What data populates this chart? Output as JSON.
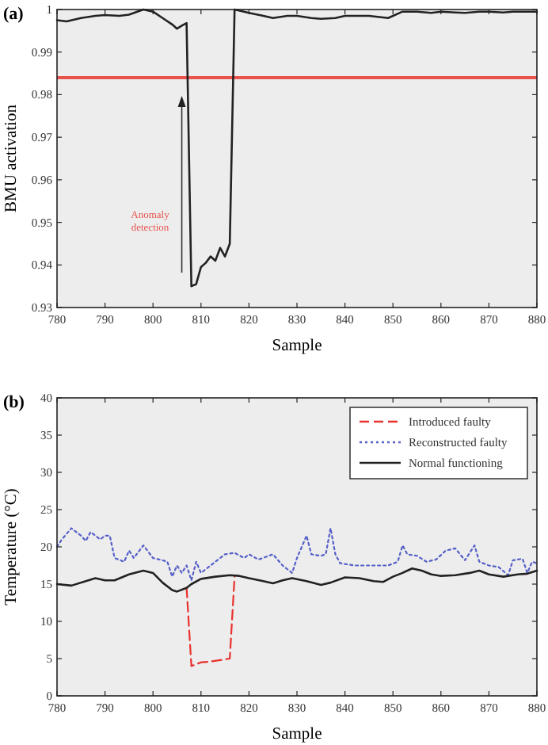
{
  "chart_data": [
    {
      "type": "line",
      "title": "(a)",
      "xlabel": "Sample",
      "ylabel": "BMU activation",
      "xlim": [
        780,
        880
      ],
      "xticks": [
        780,
        790,
        800,
        810,
        820,
        830,
        840,
        850,
        860,
        870,
        880
      ],
      "ylim": [
        0.93,
        1
      ],
      "yticks": [
        0.93,
        0.94,
        0.95,
        0.96,
        0.97,
        0.98,
        0.99,
        1
      ],
      "grid": false,
      "legend": false,
      "x": [
        780,
        782,
        785,
        788,
        790,
        793,
        795,
        798,
        800,
        802,
        804,
        805,
        806,
        807,
        808,
        809,
        810,
        811,
        812,
        813,
        814,
        815,
        816,
        817,
        820,
        823,
        825,
        828,
        830,
        833,
        835,
        838,
        840,
        843,
        845,
        849,
        852,
        855,
        858,
        860,
        863,
        865,
        868,
        870,
        873,
        875,
        878,
        880
      ],
      "series": [
        {
          "color": "#222222",
          "line_style": "solid",
          "values": [
            0.9975,
            0.9972,
            0.998,
            0.9985,
            0.9987,
            0.9985,
            0.9988,
            1.0,
            0.9995,
            0.998,
            0.9965,
            0.9955,
            0.9962,
            0.9968,
            0.935,
            0.9355,
            0.9395,
            0.9405,
            0.942,
            0.941,
            0.944,
            0.942,
            0.945,
            1.0,
            0.9992,
            0.9985,
            0.998,
            0.9985,
            0.9985,
            0.998,
            0.9978,
            0.998,
            0.9985,
            0.9985,
            0.9985,
            0.998,
            0.9995,
            0.9995,
            0.9992,
            0.9995,
            0.9993,
            0.9992,
            0.9995,
            0.9995,
            0.9993,
            0.9995,
            0.9995,
            0.9995
          ]
        }
      ],
      "ref_lines": [
        {
          "axis": "y",
          "value": 0.984,
          "color": "#e8534e"
        }
      ],
      "annotations": [
        "Anomaly detection"
      ]
    },
    {
      "type": "line",
      "title": "(b)",
      "xlabel": "Sample",
      "ylabel": "Temperature (°C)",
      "xlim": [
        780,
        880
      ],
      "xticks": [
        780,
        790,
        800,
        810,
        820,
        830,
        840,
        850,
        860,
        870,
        880
      ],
      "ylim": [
        0,
        40
      ],
      "yticks": [
        0,
        5,
        10,
        15,
        20,
        25,
        30,
        35,
        40
      ],
      "grid": false,
      "legend": "top right",
      "series": [
        {
          "name": "Introduced faulty",
          "color": "#e8322e",
          "line_style": "dashed",
          "x": [
            807,
            808,
            810,
            812,
            814,
            816,
            817
          ],
          "values": [
            14.5,
            4,
            4.5,
            4.6,
            4.8,
            5,
            16
          ]
        },
        {
          "name": "Reconstructed faulty",
          "color": "#5560c8",
          "line_style": "dotted",
          "x": [
            780,
            781,
            783,
            785,
            786,
            787,
            789,
            790,
            791,
            792,
            794,
            795,
            796,
            798,
            800,
            802,
            803,
            804,
            805,
            806,
            807,
            808,
            809,
            810,
            812,
            815,
            817,
            819,
            820,
            822,
            825,
            827,
            829,
            830,
            832,
            833,
            835,
            836,
            837,
            838,
            839,
            842,
            846,
            849,
            851,
            852,
            853,
            855,
            857,
            859,
            861,
            863,
            865,
            867,
            868,
            870,
            872,
            874,
            875,
            877,
            878,
            879,
            880
          ],
          "values": [
            20,
            21,
            22.5,
            21.5,
            20.8,
            22,
            21,
            21.5,
            21.5,
            18.5,
            18,
            19.5,
            18.5,
            20.2,
            18.5,
            18.2,
            18,
            16,
            17.5,
            16.5,
            17.5,
            15.5,
            18,
            16.5,
            17.5,
            19,
            19.2,
            18.5,
            19,
            18.3,
            19,
            17.5,
            16.5,
            18.5,
            21.5,
            19,
            18.8,
            19,
            22.5,
            19,
            17.8,
            17.5,
            17.5,
            17.5,
            18,
            20.2,
            19,
            18.8,
            18,
            18.3,
            19.5,
            19.8,
            18.2,
            20.2,
            18,
            17.5,
            17.3,
            16.2,
            18.2,
            18.4,
            16.5,
            18,
            17.8
          ]
        },
        {
          "name": "Normal functioning",
          "color": "#222222",
          "line_style": "solid",
          "x": [
            780,
            783,
            786,
            788,
            790,
            792,
            795,
            798,
            800,
            802,
            804,
            805,
            807,
            808,
            810,
            813,
            816,
            818,
            820,
            823,
            825,
            827,
            829,
            832,
            835,
            837,
            840,
            843,
            846,
            848,
            850,
            852,
            854,
            856,
            858,
            860,
            863,
            866,
            868,
            870,
            873,
            876,
            878,
            880
          ],
          "values": [
            15,
            14.8,
            15.4,
            15.8,
            15.5,
            15.5,
            16.3,
            16.8,
            16.5,
            15.2,
            14.2,
            14,
            14.5,
            15,
            15.7,
            16,
            16.2,
            16.1,
            15.8,
            15.4,
            15.1,
            15.5,
            15.8,
            15.4,
            14.9,
            15.2,
            15.9,
            15.8,
            15.4,
            15.3,
            16,
            16.5,
            17.1,
            16.8,
            16.3,
            16.1,
            16.2,
            16.5,
            16.8,
            16.3,
            16,
            16.3,
            16.4,
            16.8
          ]
        }
      ]
    }
  ]
}
